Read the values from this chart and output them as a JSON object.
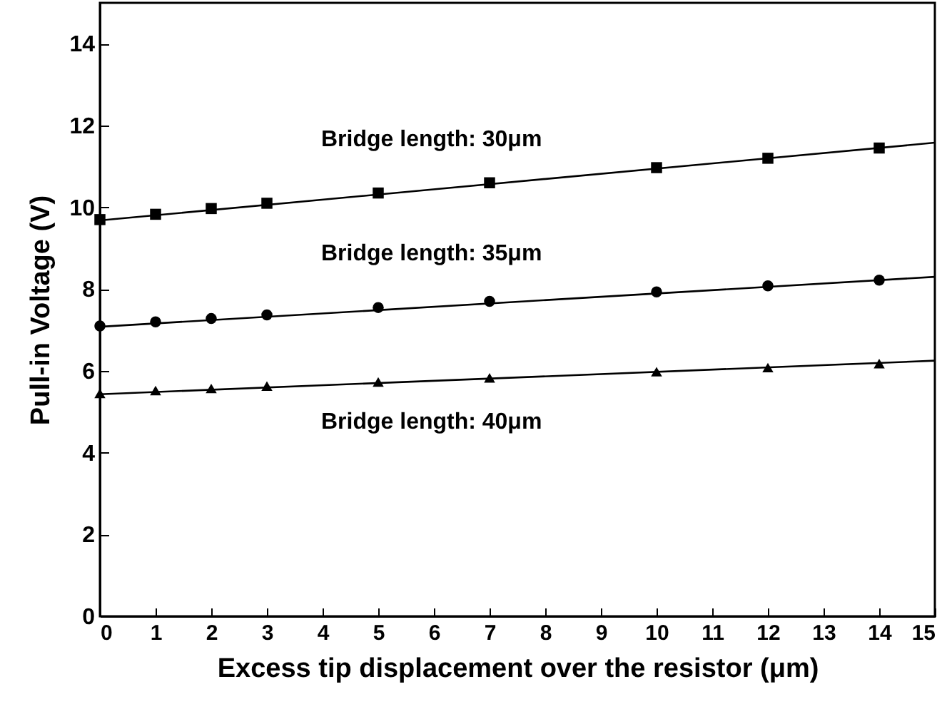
{
  "chart_data": {
    "type": "scatter",
    "xlabel": "Excess tip displacement over the resistor (μm)",
    "ylabel": "Pull-in Voltage (V)",
    "xlim": [
      0,
      15
    ],
    "ylim": [
      0,
      15
    ],
    "xticks": [
      0,
      1,
      2,
      3,
      4,
      5,
      6,
      7,
      8,
      9,
      10,
      11,
      12,
      13,
      14,
      15
    ],
    "yticks": [
      0,
      2,
      4,
      6,
      8,
      10,
      12,
      14
    ],
    "grid": false,
    "legend": false,
    "series": [
      {
        "name": "Bridge length: 30μm",
        "marker": "square",
        "color": "#000000",
        "x": [
          0,
          1,
          2,
          3,
          5,
          7,
          10,
          12,
          14
        ],
        "values": [
          9.7,
          9.83,
          9.97,
          10.1,
          10.35,
          10.6,
          10.97,
          11.2,
          11.45
        ]
      },
      {
        "name": "Bridge length: 35μm",
        "marker": "circle",
        "color": "#000000",
        "x": [
          0,
          1,
          2,
          3,
          5,
          7,
          10,
          12,
          14
        ],
        "values": [
          7.1,
          7.2,
          7.28,
          7.37,
          7.55,
          7.7,
          7.93,
          8.08,
          8.22
        ]
      },
      {
        "name": "Bridge length: 40μm",
        "marker": "triangle",
        "color": "#000000",
        "x": [
          0,
          1,
          2,
          3,
          5,
          7,
          10,
          12,
          14
        ],
        "values": [
          5.45,
          5.52,
          5.57,
          5.63,
          5.73,
          5.83,
          5.98,
          6.08,
          6.18
        ]
      },
      {
        "type": "line",
        "marker": "none",
        "line_style": "solid",
        "color": "#000000",
        "x": [
          0,
          15
        ],
        "values": [
          9.68,
          11.58
        ]
      },
      {
        "type": "line",
        "marker": "none",
        "line_style": "solid",
        "color": "#000000",
        "x": [
          0,
          15
        ],
        "values": [
          7.08,
          8.3
        ]
      },
      {
        "type": "line",
        "marker": "none",
        "line_style": "solid",
        "color": "#000000",
        "x": [
          0,
          15
        ],
        "values": [
          5.43,
          6.25
        ]
      }
    ]
  }
}
